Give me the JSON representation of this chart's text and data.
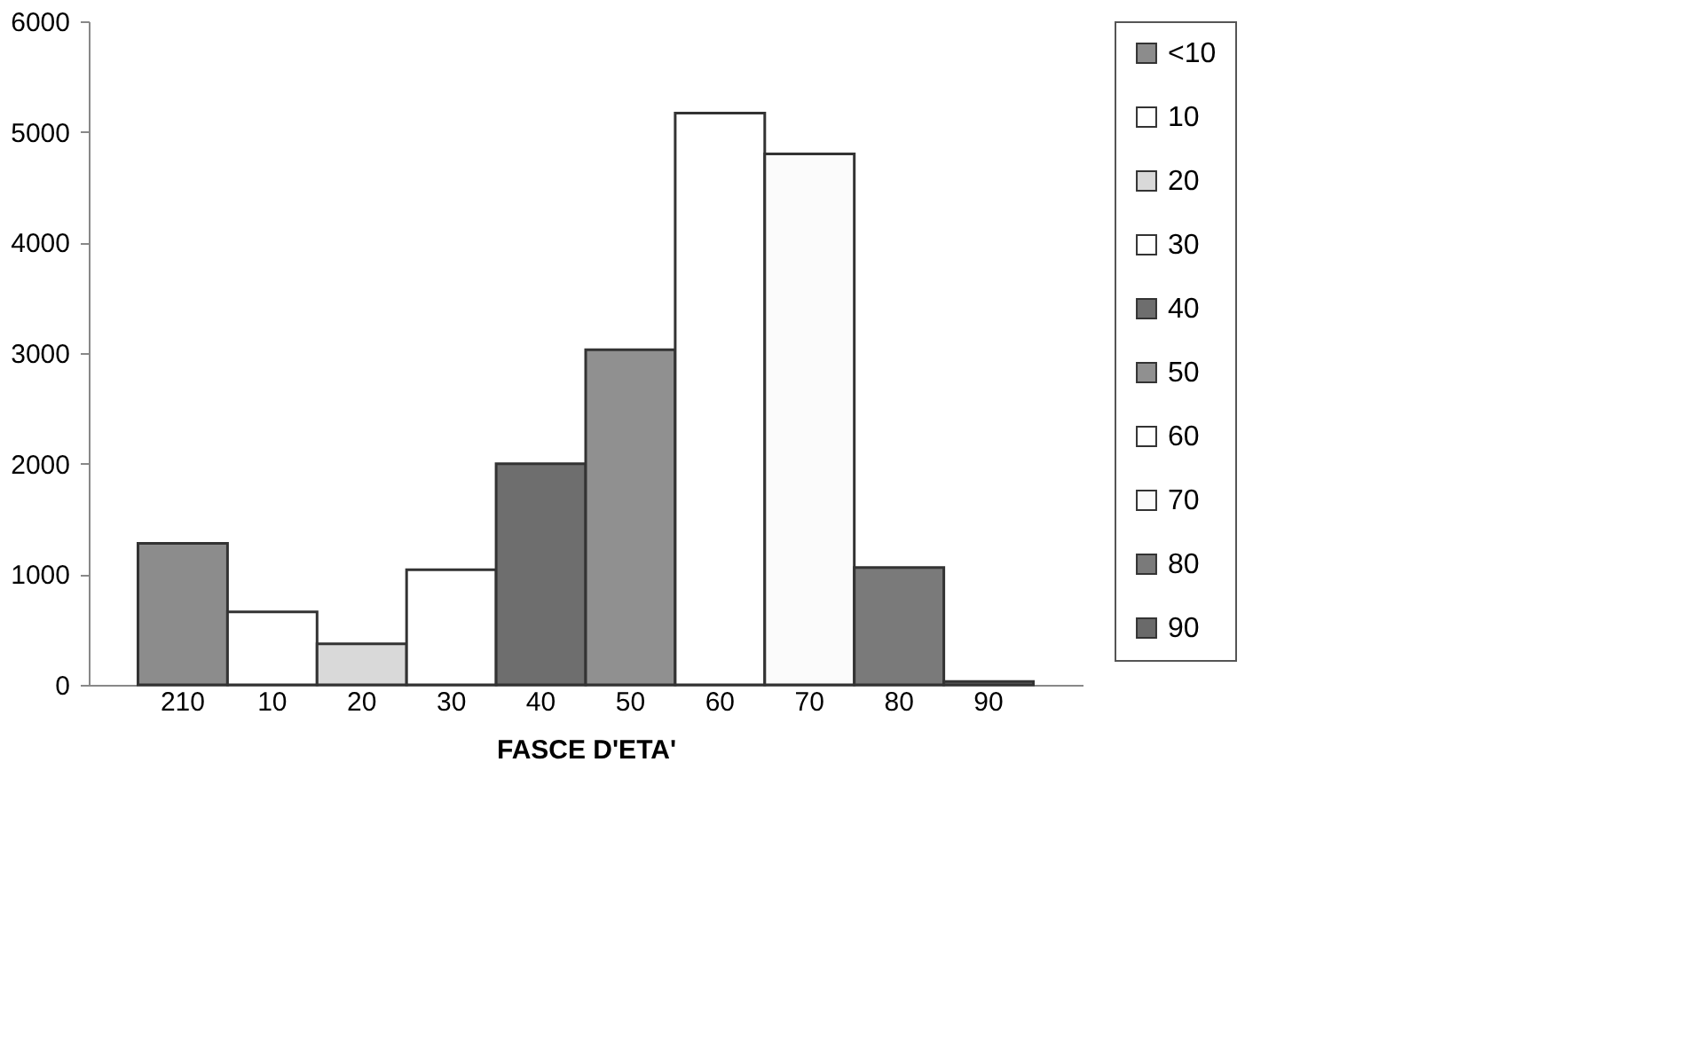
{
  "chart_data": {
    "type": "bar",
    "xlabel": "FASCE D'ETA'",
    "categories": [
      "210",
      "10",
      "20",
      "30",
      "40",
      "50",
      "60",
      "70",
      "80",
      "90"
    ],
    "series": [
      {
        "name": "<10",
        "color": "#8c8c8c",
        "values": [
          1280,
          null,
          null,
          null,
          null,
          null,
          null,
          null,
          null,
          null
        ]
      },
      {
        "name": "10",
        "color": "#ffffff",
        "values": [
          null,
          660,
          null,
          null,
          null,
          null,
          null,
          null,
          null,
          null
        ]
      },
      {
        "name": "20",
        "color": "#d9d9d9",
        "values": [
          null,
          null,
          370,
          null,
          null,
          null,
          null,
          null,
          null,
          null
        ]
      },
      {
        "name": "30",
        "color": "#ffffff",
        "values": [
          null,
          null,
          null,
          1040,
          null,
          null,
          null,
          null,
          null,
          null
        ]
      },
      {
        "name": "40",
        "color": "#6e6e6e",
        "values": [
          null,
          null,
          null,
          null,
          2000,
          null,
          null,
          null,
          null,
          null
        ]
      },
      {
        "name": "50",
        "color": "#909090",
        "values": [
          null,
          null,
          null,
          null,
          null,
          3030,
          null,
          null,
          null,
          null
        ]
      },
      {
        "name": "60",
        "color": "#ffffff",
        "values": [
          null,
          null,
          null,
          null,
          null,
          null,
          5170,
          null,
          null,
          null
        ]
      },
      {
        "name": "70",
        "color": "#fbfbfb",
        "values": [
          null,
          null,
          null,
          null,
          null,
          null,
          null,
          4800,
          null,
          null
        ]
      },
      {
        "name": "80",
        "color": "#7a7a7a",
        "values": [
          null,
          null,
          null,
          null,
          null,
          null,
          null,
          null,
          1060,
          null
        ]
      },
      {
        "name": "90",
        "color": "#6a6a6a",
        "values": [
          null,
          null,
          null,
          null,
          null,
          null,
          null,
          null,
          null,
          30
        ]
      }
    ],
    "ylim": [
      0,
      6000
    ],
    "yticks": [
      0,
      1000,
      2000,
      3000,
      4000,
      5000,
      6000
    ],
    "grid": false,
    "legend": "right"
  }
}
